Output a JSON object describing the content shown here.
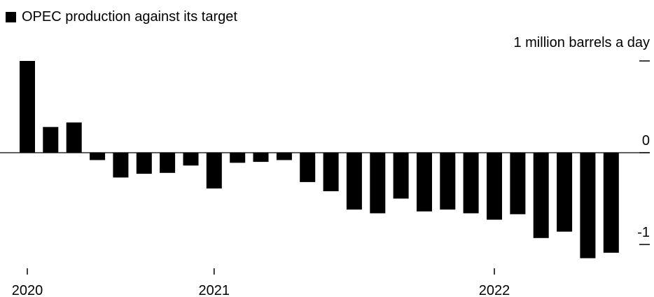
{
  "chart_data": {
    "type": "bar",
    "legend": [
      {
        "label": "OPEC production against its target",
        "color": "#000000"
      }
    ],
    "ylabel": "1 million barrels a day",
    "yticks": [
      {
        "value": 1,
        "label": ""
      },
      {
        "value": 0,
        "label": "0"
      },
      {
        "value": -1,
        "label": "-1"
      }
    ],
    "ylim": [
      -1.15,
      1.05
    ],
    "xticks": [
      {
        "index": 0,
        "label": "2020"
      },
      {
        "index": 8,
        "label": "2021"
      },
      {
        "index": 20,
        "label": "2022"
      }
    ],
    "series": [
      {
        "color": "#000000",
        "values": [
          1.0,
          0.28,
          0.33,
          -0.08,
          -0.27,
          -0.23,
          -0.22,
          -0.14,
          -0.39,
          -0.11,
          -0.1,
          -0.08,
          -0.32,
          -0.42,
          -0.62,
          -0.66,
          -0.5,
          -0.64,
          -0.62,
          -0.66,
          -0.73,
          -0.67,
          -0.93,
          -0.86,
          -1.15,
          -1.09
        ]
      }
    ]
  }
}
